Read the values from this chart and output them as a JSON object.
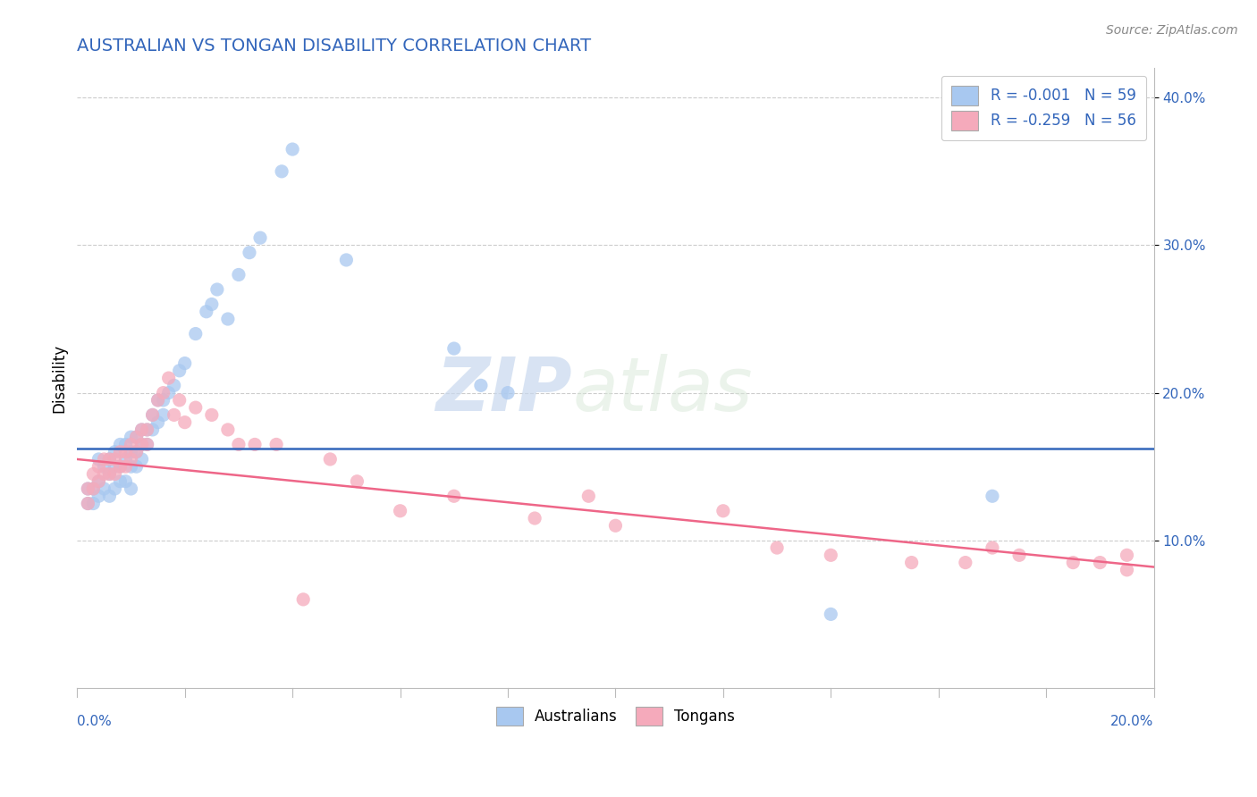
{
  "title": "AUSTRALIAN VS TONGAN DISABILITY CORRELATION CHART",
  "source": "Source: ZipAtlas.com",
  "ylabel": "Disability",
  "xlim": [
    0.0,
    0.2
  ],
  "ylim": [
    0.0,
    0.42
  ],
  "yticks": [
    0.1,
    0.2,
    0.3,
    0.4
  ],
  "ytick_labels": [
    "10.0%",
    "20.0%",
    "30.0%",
    "40.0%"
  ],
  "legend_r1": "R = -0.001",
  "legend_n1": "N = 59",
  "legend_r2": "R = -0.259",
  "legend_n2": "N = 56",
  "blue_color": "#A8C8F0",
  "pink_color": "#F5AABB",
  "blue_line_color": "#3366BB",
  "pink_line_color": "#EE6688",
  "title_color": "#3366BB",
  "axis_color": "#bbbbbb",
  "grid_color": "#cccccc",
  "watermark_zip": "ZIP",
  "watermark_atlas": "atlas",
  "blue_line_y_start": 0.162,
  "blue_line_y_end": 0.162,
  "pink_line_y_start": 0.155,
  "pink_line_y_end": 0.082,
  "blue_dots_x": [
    0.002,
    0.002,
    0.003,
    0.003,
    0.004,
    0.004,
    0.004,
    0.005,
    0.005,
    0.006,
    0.006,
    0.006,
    0.007,
    0.007,
    0.007,
    0.008,
    0.008,
    0.008,
    0.009,
    0.009,
    0.009,
    0.01,
    0.01,
    0.01,
    0.01,
    0.011,
    0.011,
    0.011,
    0.012,
    0.012,
    0.012,
    0.013,
    0.013,
    0.014,
    0.014,
    0.015,
    0.015,
    0.016,
    0.016,
    0.017,
    0.018,
    0.019,
    0.02,
    0.022,
    0.024,
    0.025,
    0.026,
    0.028,
    0.03,
    0.032,
    0.034,
    0.038,
    0.04,
    0.05,
    0.07,
    0.075,
    0.08,
    0.14,
    0.17
  ],
  "blue_dots_y": [
    0.135,
    0.125,
    0.135,
    0.125,
    0.155,
    0.14,
    0.13,
    0.15,
    0.135,
    0.155,
    0.145,
    0.13,
    0.16,
    0.15,
    0.135,
    0.165,
    0.15,
    0.14,
    0.165,
    0.155,
    0.14,
    0.17,
    0.16,
    0.15,
    0.135,
    0.17,
    0.16,
    0.15,
    0.175,
    0.165,
    0.155,
    0.175,
    0.165,
    0.185,
    0.175,
    0.195,
    0.18,
    0.195,
    0.185,
    0.2,
    0.205,
    0.215,
    0.22,
    0.24,
    0.255,
    0.26,
    0.27,
    0.25,
    0.28,
    0.295,
    0.305,
    0.35,
    0.365,
    0.29,
    0.23,
    0.205,
    0.2,
    0.05,
    0.13
  ],
  "pink_dots_x": [
    0.002,
    0.002,
    0.003,
    0.003,
    0.004,
    0.004,
    0.005,
    0.005,
    0.006,
    0.006,
    0.007,
    0.007,
    0.008,
    0.008,
    0.009,
    0.009,
    0.01,
    0.01,
    0.011,
    0.011,
    0.012,
    0.012,
    0.013,
    0.013,
    0.014,
    0.015,
    0.016,
    0.017,
    0.018,
    0.019,
    0.02,
    0.022,
    0.025,
    0.028,
    0.03,
    0.033,
    0.037,
    0.042,
    0.047,
    0.052,
    0.06,
    0.07,
    0.085,
    0.095,
    0.1,
    0.12,
    0.13,
    0.14,
    0.155,
    0.165,
    0.17,
    0.175,
    0.185,
    0.19,
    0.195,
    0.195
  ],
  "pink_dots_y": [
    0.135,
    0.125,
    0.145,
    0.135,
    0.15,
    0.14,
    0.155,
    0.145,
    0.155,
    0.145,
    0.155,
    0.145,
    0.16,
    0.15,
    0.16,
    0.15,
    0.165,
    0.155,
    0.17,
    0.16,
    0.175,
    0.165,
    0.175,
    0.165,
    0.185,
    0.195,
    0.2,
    0.21,
    0.185,
    0.195,
    0.18,
    0.19,
    0.185,
    0.175,
    0.165,
    0.165,
    0.165,
    0.06,
    0.155,
    0.14,
    0.12,
    0.13,
    0.115,
    0.13,
    0.11,
    0.12,
    0.095,
    0.09,
    0.085,
    0.085,
    0.095,
    0.09,
    0.085,
    0.085,
    0.08,
    0.09
  ]
}
